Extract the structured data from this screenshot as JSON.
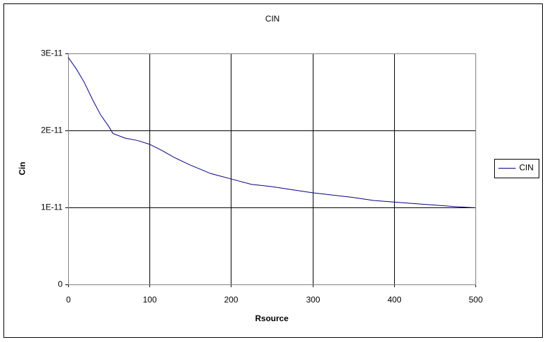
{
  "chart_data": {
    "type": "line",
    "title": "CIN",
    "x_label": "Rsource",
    "y_label": "Cin",
    "x": [
      0,
      10,
      20,
      30,
      40,
      50,
      55,
      70,
      85,
      100,
      115,
      130,
      150,
      175,
      200,
      225,
      250,
      275,
      300,
      325,
      350,
      375,
      400,
      425,
      450,
      475,
      500
    ],
    "series": [
      {
        "name": "CIN",
        "color": "#000080",
        "values": [
          2.95e-11,
          2.8e-11,
          2.62e-11,
          2.4e-11,
          2.2e-11,
          2.05e-11,
          1.96e-11,
          1.9e-11,
          1.87e-11,
          1.82e-11,
          1.74e-11,
          1.65e-11,
          1.55e-11,
          1.44e-11,
          1.37e-11,
          1.3e-11,
          1.27e-11,
          1.23e-11,
          1.19e-11,
          1.16e-11,
          1.13e-11,
          1.09e-11,
          1.07e-11,
          1.05e-11,
          1.03e-11,
          1.01e-11,
          9.95e-12
        ]
      }
    ],
    "xlim": [
      0,
      500
    ],
    "xticks": [
      0,
      100,
      200,
      300,
      400,
      500
    ],
    "ylim": [
      0,
      3e-11
    ],
    "yticks": [
      0,
      {
        "value": 1e-11,
        "label": "1E-11"
      },
      {
        "value": 2e-11,
        "label": "2E-11"
      },
      {
        "value": 3e-11,
        "label": "3E-11"
      }
    ],
    "grid": true,
    "legend": "right"
  }
}
